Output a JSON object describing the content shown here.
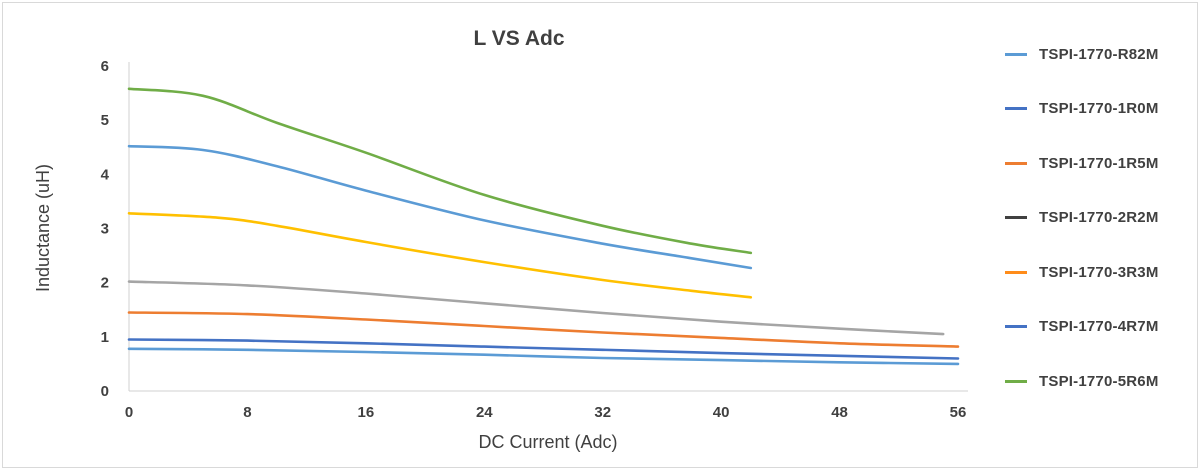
{
  "chart_data": {
    "type": "line",
    "title": "L VS Adc",
    "xlabel": "DC Current (Adc)",
    "ylabel": "Inductance (uH)",
    "xlim": [
      0,
      56
    ],
    "ylim": [
      0,
      6
    ],
    "x_ticks": [
      "0",
      "8",
      "16",
      "24",
      "32",
      "40",
      "48",
      "56"
    ],
    "y_ticks": [
      "0",
      "1",
      "2",
      "3",
      "4",
      "5",
      "6"
    ],
    "grid": false,
    "legend_position": "right",
    "series": [
      {
        "name": "TSPI-1770-R82M",
        "color": "#5b9bd5",
        "points": [
          [
            0,
            0.78
          ],
          [
            8,
            0.76
          ],
          [
            16,
            0.72
          ],
          [
            24,
            0.67
          ],
          [
            32,
            0.61
          ],
          [
            40,
            0.57
          ],
          [
            48,
            0.53
          ],
          [
            56,
            0.5
          ]
        ]
      },
      {
        "name": "TSPI-1770-1R0M",
        "color": "#4472c4",
        "points": [
          [
            0,
            0.95
          ],
          [
            8,
            0.93
          ],
          [
            16,
            0.88
          ],
          [
            24,
            0.82
          ],
          [
            32,
            0.76
          ],
          [
            40,
            0.7
          ],
          [
            48,
            0.65
          ],
          [
            56,
            0.6
          ]
        ]
      },
      {
        "name": "TSPI-1770-1R5M",
        "color": "#ed7d31",
        "points": [
          [
            0,
            1.45
          ],
          [
            8,
            1.42
          ],
          [
            16,
            1.32
          ],
          [
            24,
            1.2
          ],
          [
            32,
            1.08
          ],
          [
            40,
            0.98
          ],
          [
            48,
            0.88
          ],
          [
            56,
            0.82
          ]
        ]
      },
      {
        "name": "TSPI-1770-2R2M",
        "color": "#a5a5a5",
        "points": [
          [
            0,
            2.02
          ],
          [
            8,
            1.95
          ],
          [
            16,
            1.8
          ],
          [
            24,
            1.62
          ],
          [
            32,
            1.44
          ],
          [
            40,
            1.28
          ],
          [
            48,
            1.15
          ],
          [
            55,
            1.05
          ]
        ]
      },
      {
        "name": "TSPI-1770-3R3M",
        "color": "#ffc000",
        "points": [
          [
            0,
            3.28
          ],
          [
            6,
            3.2
          ],
          [
            10,
            3.05
          ],
          [
            16,
            2.75
          ],
          [
            24,
            2.38
          ],
          [
            32,
            2.05
          ],
          [
            38,
            1.85
          ],
          [
            42,
            1.73
          ]
        ]
      },
      {
        "name": "TSPI-1770-4R7M",
        "color": "#5b9bd5",
        "points": [
          [
            0,
            4.52
          ],
          [
            5,
            4.45
          ],
          [
            10,
            4.15
          ],
          [
            16,
            3.7
          ],
          [
            24,
            3.15
          ],
          [
            32,
            2.72
          ],
          [
            38,
            2.45
          ],
          [
            42,
            2.27
          ]
        ]
      },
      {
        "name": "TSPI-1770-5R6M",
        "color": "#70ad47",
        "points": [
          [
            0,
            5.58
          ],
          [
            5,
            5.45
          ],
          [
            10,
            4.95
          ],
          [
            16,
            4.4
          ],
          [
            24,
            3.62
          ],
          [
            32,
            3.05
          ],
          [
            38,
            2.72
          ],
          [
            42,
            2.55
          ]
        ]
      }
    ]
  },
  "legend": [
    {
      "label": "TSPI-1770-R82M",
      "color": "#5b9bd5"
    },
    {
      "label": "TSPI-1770-1R0M",
      "color": "#4472c4"
    },
    {
      "label": "TSPI-1770-1R5M",
      "color": "#ed7d31"
    },
    {
      "label": "TSPI-1770-2R2M",
      "color": "#404040"
    },
    {
      "label": "TSPI-1770-3R3M",
      "color": "#ff8c1a"
    },
    {
      "label": "TSPI-1770-4R7M",
      "color": "#4472c4"
    },
    {
      "label": "TSPI-1770-5R6M",
      "color": "#70ad47"
    }
  ]
}
